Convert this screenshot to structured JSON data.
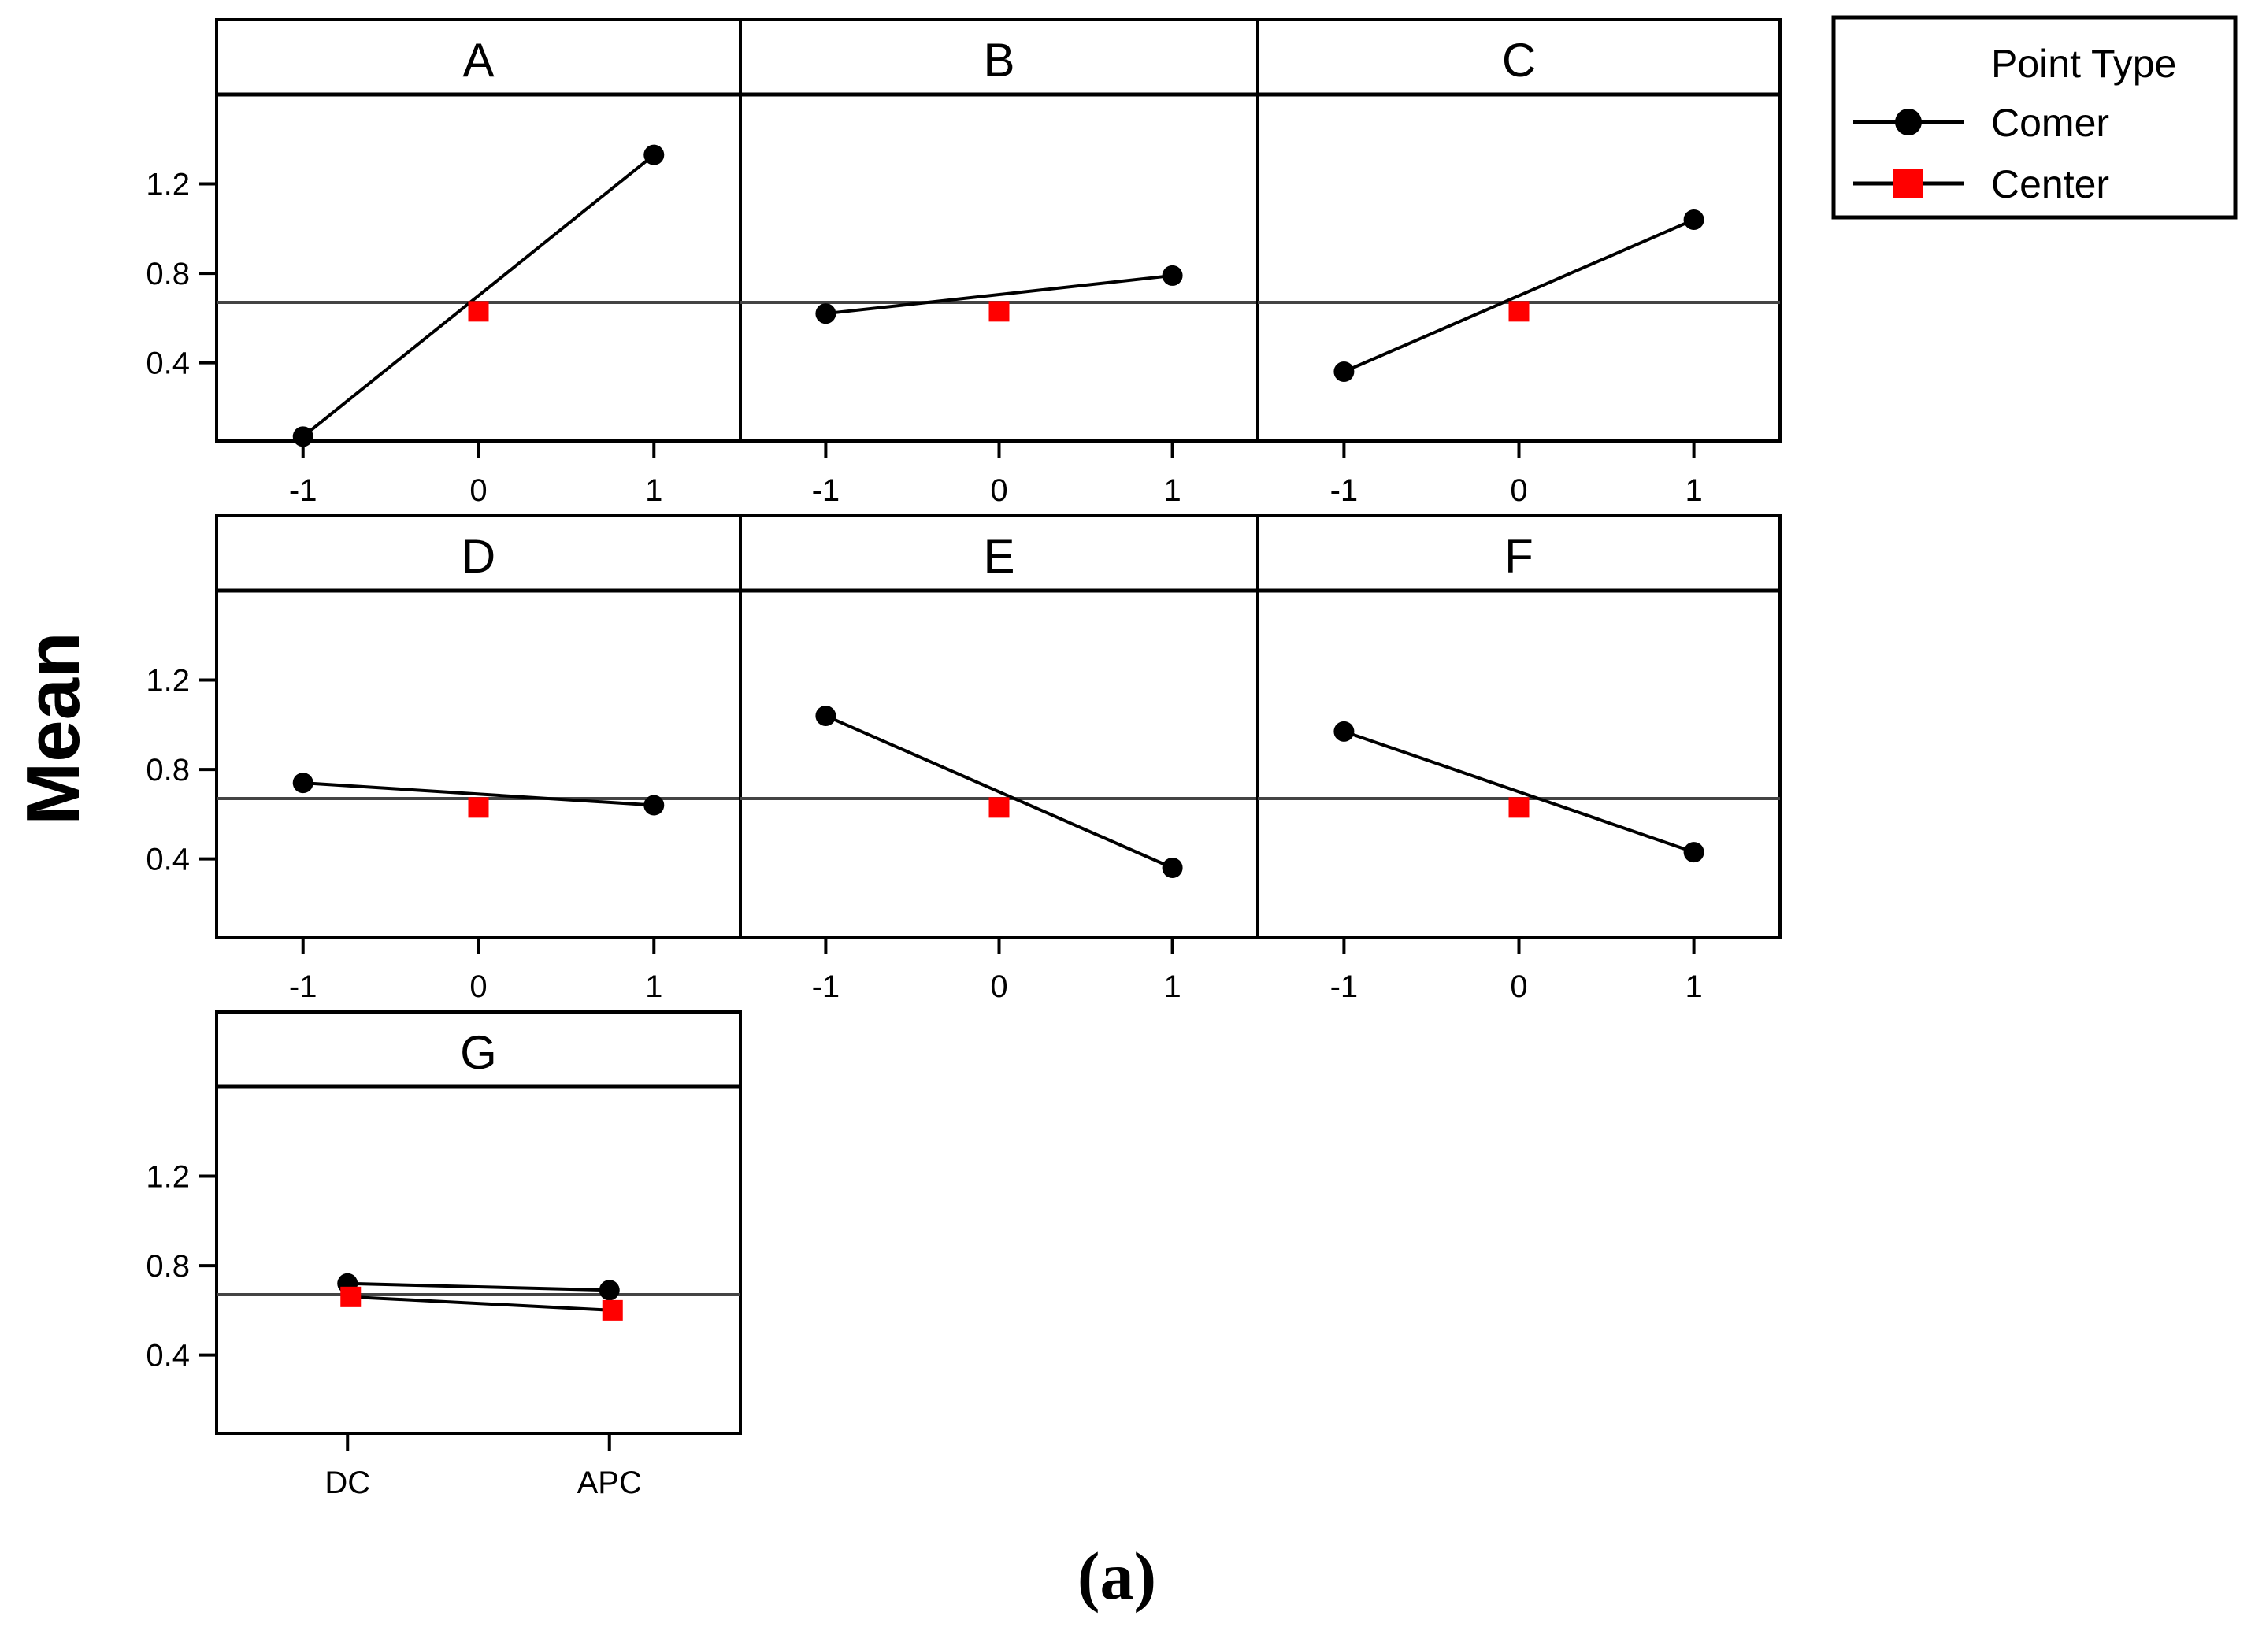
{
  "chart_data": {
    "type": "line",
    "ylabel": "Mean",
    "caption": "(a)",
    "ylim": [
      0.05,
      1.6
    ],
    "yticks": [
      0.4,
      0.8,
      1.2
    ],
    "ytick_labels": [
      "0.4",
      "0.8",
      "1.2"
    ],
    "grand_mean": 0.67,
    "legend": {
      "title": "Point Type",
      "entries": [
        {
          "name": "Comer",
          "marker": "circle",
          "color": "#000000"
        },
        {
          "name": "Center",
          "marker": "square",
          "color": "#ff0000"
        }
      ]
    },
    "panels": [
      {
        "label": "A",
        "x": [
          "-1",
          "0",
          "1"
        ],
        "corner": [
          0.07,
          1.33
        ],
        "center": [
          0.63
        ]
      },
      {
        "label": "B",
        "x": [
          "-1",
          "0",
          "1"
        ],
        "corner": [
          0.62,
          0.79
        ],
        "center": [
          0.63
        ]
      },
      {
        "label": "C",
        "x": [
          "-1",
          "0",
          "1"
        ],
        "corner": [
          0.36,
          1.04
        ],
        "center": [
          0.63
        ]
      },
      {
        "label": "D",
        "x": [
          "-1",
          "0",
          "1"
        ],
        "corner": [
          0.74,
          0.64
        ],
        "center": [
          0.63
        ]
      },
      {
        "label": "E",
        "x": [
          "-1",
          "0",
          "1"
        ],
        "corner": [
          1.04,
          0.36
        ],
        "center": [
          0.63
        ]
      },
      {
        "label": "F",
        "x": [
          "-1",
          "0",
          "1"
        ],
        "corner": [
          0.97,
          0.43
        ],
        "center": [
          0.63
        ]
      },
      {
        "label": "G",
        "x": [
          "DC",
          "APC"
        ],
        "corner": [
          0.72,
          0.69
        ],
        "center": [
          0.66,
          0.6
        ]
      }
    ]
  }
}
